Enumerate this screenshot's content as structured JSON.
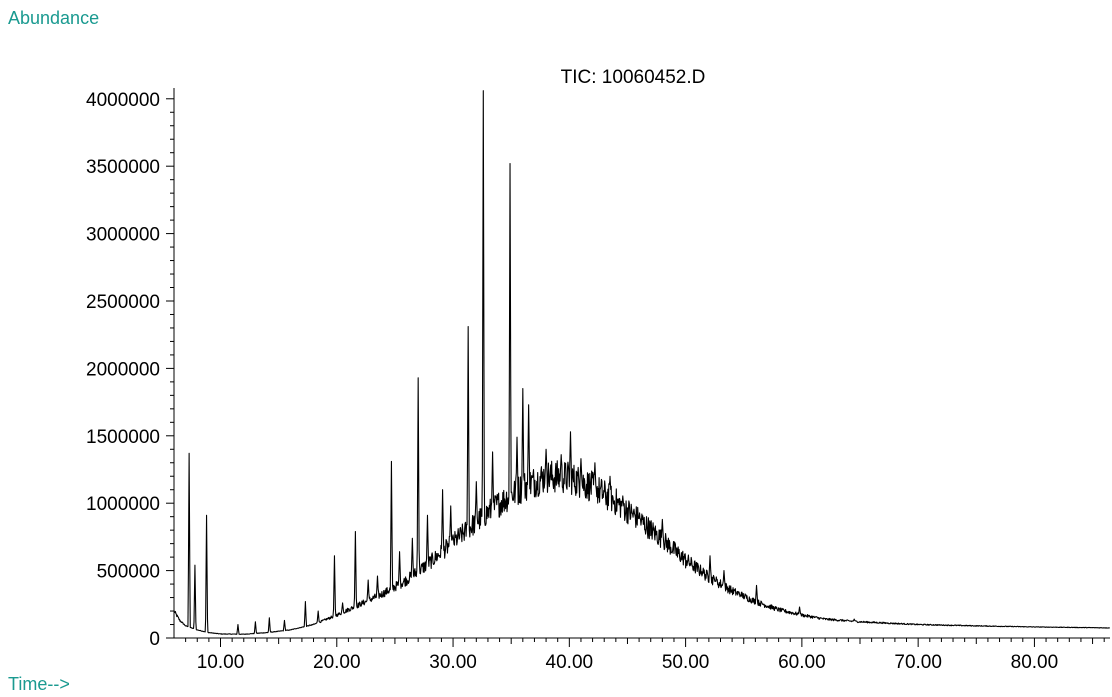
{
  "chart_data": {
    "type": "line",
    "title": "TIC: 10060452.D",
    "ylabel": "Abundance",
    "xlabel": "Time-->",
    "xlim": [
      6.0,
      86.5
    ],
    "ylim": [
      0,
      4080000
    ],
    "grid": false,
    "xticks": [
      "10.00",
      "20.00",
      "30.00",
      "40.00",
      "50.00",
      "60.00",
      "70.00",
      "80.00"
    ],
    "yticks": [
      "0",
      "500000",
      "1000000",
      "1500000",
      "2000000",
      "2500000",
      "3000000",
      "3500000",
      "4000000"
    ],
    "color": "#000000",
    "baseline": [
      [
        6.0,
        200000
      ],
      [
        6.5,
        130000
      ],
      [
        7.0,
        90000
      ],
      [
        8.0,
        60000
      ],
      [
        9.0,
        40000
      ],
      [
        10.0,
        30000
      ],
      [
        12.0,
        28000
      ],
      [
        14.0,
        40000
      ],
      [
        16.0,
        60000
      ],
      [
        18.0,
        100000
      ],
      [
        20.0,
        170000
      ],
      [
        22.0,
        250000
      ],
      [
        24.0,
        330000
      ],
      [
        26.0,
        430000
      ],
      [
        28.0,
        560000
      ],
      [
        30.0,
        710000
      ],
      [
        32.0,
        860000
      ],
      [
        34.0,
        1000000
      ],
      [
        36.0,
        1120000
      ],
      [
        38.0,
        1200000
      ],
      [
        40.0,
        1190000
      ],
      [
        42.0,
        1120000
      ],
      [
        44.0,
        1010000
      ],
      [
        46.0,
        880000
      ],
      [
        48.0,
        730000
      ],
      [
        50.0,
        580000
      ],
      [
        52.0,
        450000
      ],
      [
        54.0,
        350000
      ],
      [
        56.0,
        270000
      ],
      [
        58.0,
        210000
      ],
      [
        60.0,
        170000
      ],
      [
        62.0,
        140000
      ],
      [
        65.0,
        120000
      ],
      [
        70.0,
        100000
      ],
      [
        75.0,
        90000
      ],
      [
        80.0,
        82000
      ],
      [
        86.5,
        75000
      ]
    ],
    "peaks": [
      [
        7.3,
        1370000
      ],
      [
        7.8,
        540000
      ],
      [
        8.8,
        910000
      ],
      [
        11.5,
        100000
      ],
      [
        13.0,
        120000
      ],
      [
        14.2,
        150000
      ],
      [
        15.5,
        130000
      ],
      [
        17.3,
        270000
      ],
      [
        18.4,
        200000
      ],
      [
        19.8,
        610000
      ],
      [
        20.5,
        260000
      ],
      [
        21.6,
        790000
      ],
      [
        22.7,
        430000
      ],
      [
        23.5,
        460000
      ],
      [
        24.7,
        1310000
      ],
      [
        25.4,
        640000
      ],
      [
        26.5,
        740000
      ],
      [
        27.0,
        1930000
      ],
      [
        27.8,
        910000
      ],
      [
        29.1,
        1100000
      ],
      [
        29.8,
        980000
      ],
      [
        31.3,
        2310000
      ],
      [
        32.0,
        1160000
      ],
      [
        32.6,
        4060000
      ],
      [
        33.4,
        1380000
      ],
      [
        34.9,
        3520000
      ],
      [
        35.5,
        1490000
      ],
      [
        36.0,
        1850000
      ],
      [
        36.5,
        1730000
      ],
      [
        38.0,
        1400000
      ],
      [
        39.3,
        1360000
      ],
      [
        40.1,
        1530000
      ],
      [
        41.0,
        1330000
      ],
      [
        42.2,
        1300000
      ],
      [
        43.5,
        1200000
      ],
      [
        44.6,
        1050000
      ],
      [
        46.0,
        890000
      ],
      [
        47.0,
        760000
      ],
      [
        48.0,
        880000
      ],
      [
        49.3,
        600000
      ],
      [
        50.0,
        520000
      ],
      [
        51.4,
        460000
      ],
      [
        52.1,
        610000
      ],
      [
        52.6,
        420000
      ],
      [
        53.3,
        500000
      ],
      [
        54.8,
        310000
      ],
      [
        56.1,
        390000
      ],
      [
        56.6,
        250000
      ],
      [
        59.8,
        230000
      ],
      [
        64.5,
        140000
      ]
    ]
  }
}
